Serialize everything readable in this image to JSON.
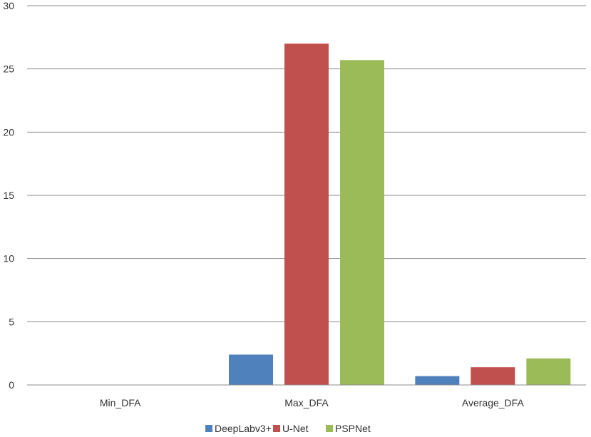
{
  "chart_data": {
    "type": "bar",
    "categories": [
      "Min_DFA",
      "Max_DFA",
      "Average_DFA"
    ],
    "series": [
      {
        "name": "DeepLabv3+",
        "values": [
          0,
          2.4,
          0.7
        ],
        "color": "#4f81bd"
      },
      {
        "name": "U-Net",
        "values": [
          0,
          27.0,
          1.4
        ],
        "color": "#c0504d"
      },
      {
        "name": "PSPNet",
        "values": [
          0,
          25.7,
          2.1
        ],
        "color": "#9bbb59"
      }
    ],
    "ylim": [
      0,
      30
    ],
    "yticks": [
      0,
      5,
      10,
      15,
      20,
      25,
      30
    ],
    "grid": true,
    "legend": "bottom"
  }
}
